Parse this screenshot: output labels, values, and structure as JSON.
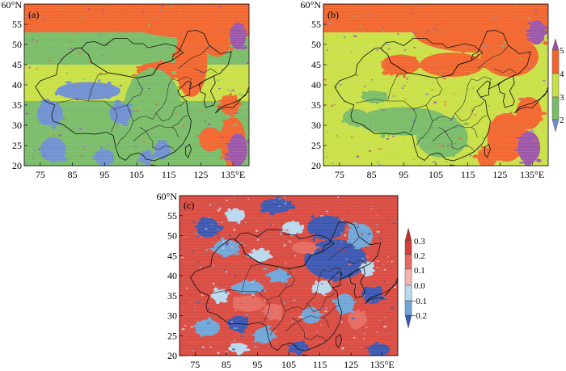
{
  "panels": [
    {
      "label": "(a)",
      "y_top_label": "60°N",
      "y_ticks": [
        "55",
        "50",
        "45",
        "40",
        "35",
        "30",
        "25",
        "20"
      ],
      "x_ticks": [
        "75",
        "85",
        "95",
        "105",
        "115",
        "125",
        "135°E"
      ],
      "palette": "classes",
      "blobs": [
        {
          "lon": 127,
          "lat": 55,
          "rx": 24,
          "ry": 3.6,
          "c": "c4"
        },
        {
          "lon": 116,
          "lat": 57.5,
          "rx": 16,
          "ry": 2.3,
          "c": "c4"
        },
        {
          "lon": 93,
          "lat": 57,
          "rx": 6,
          "ry": 2,
          "c": "c4"
        },
        {
          "lon": 122,
          "lat": 46,
          "rx": 5,
          "ry": 9,
          "c": "c4"
        },
        {
          "lon": 113,
          "lat": 43.5,
          "rx": 8,
          "ry": 2.2,
          "c": "c4"
        },
        {
          "lon": 130,
          "lat": 50,
          "rx": 4,
          "ry": 3,
          "c": "c4"
        },
        {
          "lon": 134,
          "lat": 35,
          "rx": 3,
          "ry": 2.5,
          "c": "c4"
        },
        {
          "lon": 128,
          "lat": 26.5,
          "rx": 3.5,
          "ry": 3,
          "c": "c4"
        },
        {
          "lon": 135,
          "lat": 26,
          "rx": 4,
          "ry": 6,
          "c": "c4"
        },
        {
          "lon": 136.5,
          "lat": 52,
          "rx": 2.5,
          "ry": 3.2,
          "c": "c5"
        },
        {
          "lon": 136.5,
          "lat": 24,
          "rx": 3,
          "ry": 4,
          "c": "c5"
        },
        {
          "lon": 94,
          "lat": 28.5,
          "rx": 15,
          "ry": 4.5,
          "c": "c3"
        },
        {
          "lon": 110,
          "lat": 34,
          "rx": 9,
          "ry": 10,
          "c": "c3"
        },
        {
          "lon": 90,
          "lat": 38.5,
          "rx": 10,
          "ry": 2.2,
          "c": "c2"
        },
        {
          "lon": 78,
          "lat": 33,
          "rx": 4,
          "ry": 3,
          "c": "c2"
        },
        {
          "lon": 100,
          "lat": 33,
          "rx": 3.5,
          "ry": 2.5,
          "c": "c2"
        },
        {
          "lon": 79,
          "lat": 24,
          "rx": 4,
          "ry": 3,
          "c": "c2"
        },
        {
          "lon": 95,
          "lat": 22,
          "rx": 3,
          "ry": 2,
          "c": "c2"
        },
        {
          "lon": 113,
          "lat": 24,
          "rx": 2.5,
          "ry": 2,
          "c": "c2"
        },
        {
          "lon": 108,
          "lat": 22,
          "rx": 2,
          "ry": 1.5,
          "c": "c2"
        }
      ]
    },
    {
      "label": "(b)",
      "y_top_label": "60°N",
      "y_ticks": [
        "55",
        "50",
        "45",
        "40",
        "35",
        "30",
        "25",
        "20"
      ],
      "x_ticks": [
        "75",
        "85",
        "95",
        "105",
        "115",
        "125",
        "135°E"
      ],
      "palette": "classes",
      "blobs": [
        {
          "lon": 118,
          "lat": 53,
          "rx": 20,
          "ry": 5,
          "c": "c4"
        },
        {
          "lon": 128,
          "lat": 47,
          "rx": 9,
          "ry": 5,
          "c": "c4"
        },
        {
          "lon": 110,
          "lat": 45,
          "rx": 10,
          "ry": 3,
          "c": "c4"
        },
        {
          "lon": 94,
          "lat": 45,
          "rx": 6,
          "ry": 2.5,
          "c": "c4"
        },
        {
          "lon": 104,
          "lat": 57,
          "rx": 7,
          "ry": 1.8,
          "c": "c4"
        },
        {
          "lon": 127,
          "lat": 27,
          "rx": 6,
          "ry": 6,
          "c": "c4"
        },
        {
          "lon": 134,
          "lat": 33,
          "rx": 4,
          "ry": 4,
          "c": "c4"
        },
        {
          "lon": 121,
          "lat": 22,
          "rx": 3,
          "ry": 2.5,
          "c": "c4"
        },
        {
          "lon": 136.5,
          "lat": 53,
          "rx": 2.5,
          "ry": 3,
          "c": "c5"
        },
        {
          "lon": 134,
          "lat": 24.5,
          "rx": 3.5,
          "ry": 4,
          "c": "c5"
        },
        {
          "lon": 95,
          "lat": 31,
          "rx": 14,
          "ry": 3.5,
          "c": "c3"
        },
        {
          "lon": 107,
          "lat": 27,
          "rx": 8,
          "ry": 5,
          "c": "c3"
        },
        {
          "lon": 80,
          "lat": 32,
          "rx": 4,
          "ry": 2,
          "c": "c3"
        },
        {
          "lon": 86,
          "lat": 37,
          "rx": 4,
          "ry": 1.5,
          "c": "c3"
        }
      ]
    },
    {
      "label": "(c)",
      "y_top_label": "60°N",
      "y_ticks": [
        "55",
        "50",
        "45",
        "40",
        "35",
        "30",
        "25",
        "20"
      ],
      "x_ticks": [
        "75",
        "85",
        "95",
        "105",
        "115",
        "125",
        "135°E"
      ],
      "palette": "diff",
      "blobs": [
        {
          "lon": 120,
          "lat": 44,
          "rx": 10,
          "ry": 5,
          "c": "m2"
        },
        {
          "lon": 117,
          "lat": 52,
          "rx": 6,
          "ry": 3,
          "c": "m2"
        },
        {
          "lon": 101,
          "lat": 57.5,
          "rx": 5,
          "ry": 1.8,
          "c": "m2"
        },
        {
          "lon": 79,
          "lat": 52,
          "rx": 3.5,
          "ry": 2.5,
          "c": "m2"
        },
        {
          "lon": 89,
          "lat": 28,
          "rx": 3,
          "ry": 2,
          "c": "m2"
        },
        {
          "lon": 132,
          "lat": 35,
          "rx": 3,
          "ry": 2,
          "c": "m2"
        },
        {
          "lon": 134,
          "lat": 21.5,
          "rx": 3.5,
          "ry": 1.5,
          "c": "m2"
        },
        {
          "lon": 108,
          "lat": 22,
          "rx": 2.5,
          "ry": 1.5,
          "c": "m2"
        },
        {
          "lon": 92,
          "lat": 37,
          "rx": 5,
          "ry": 1.5,
          "c": "m1"
        },
        {
          "lon": 85,
          "lat": 47,
          "rx": 4,
          "ry": 2,
          "c": "m1"
        },
        {
          "lon": 128,
          "lat": 50,
          "rx": 4,
          "ry": 3,
          "c": "m1"
        },
        {
          "lon": 79,
          "lat": 27,
          "rx": 4,
          "ry": 2,
          "c": "m1"
        },
        {
          "lon": 112,
          "lat": 30,
          "rx": 3,
          "ry": 2,
          "c": "m1"
        },
        {
          "lon": 123,
          "lat": 33,
          "rx": 3,
          "ry": 2.5,
          "c": "m1"
        },
        {
          "lon": 102,
          "lat": 40,
          "rx": 3,
          "ry": 1.5,
          "c": "m1"
        },
        {
          "lon": 97,
          "lat": 25,
          "rx": 3,
          "ry": 2,
          "c": "m1"
        },
        {
          "lon": 96,
          "lat": 45,
          "rx": 3,
          "ry": 1.5,
          "c": "z0"
        },
        {
          "lon": 83,
          "lat": 35,
          "rx": 2.5,
          "ry": 1.5,
          "c": "z0"
        },
        {
          "lon": 116,
          "lat": 37,
          "rx": 3,
          "ry": 1.5,
          "c": "z0"
        },
        {
          "lon": 106,
          "lat": 52,
          "rx": 3,
          "ry": 1.5,
          "c": "z0"
        },
        {
          "lon": 89,
          "lat": 22,
          "rx": 2.5,
          "ry": 1.2,
          "c": "z0"
        },
        {
          "lon": 130,
          "lat": 42,
          "rx": 2,
          "ry": 1.5,
          "c": "z0"
        },
        {
          "lon": 88,
          "lat": 55,
          "rx": 3,
          "ry": 1.5,
          "c": "z0"
        },
        {
          "lon": 110,
          "lat": 47,
          "rx": 4,
          "ry": 1.5,
          "c": "p2"
        },
        {
          "lon": 92,
          "lat": 33,
          "rx": 5,
          "ry": 2,
          "c": "p2"
        },
        {
          "lon": 127,
          "lat": 29,
          "rx": 3,
          "ry": 2,
          "c": "p2"
        },
        {
          "lon": 100,
          "lat": 31,
          "rx": 3,
          "ry": 2,
          "c": "p2"
        }
      ]
    }
  ],
  "colorbars": [
    {
      "labels": [
        "5",
        "4",
        "3",
        "2"
      ]
    },
    {
      "labels": [
        "0.3",
        "0.2",
        "0.1",
        "0.0",
        "−0.1",
        "−0.2"
      ]
    }
  ],
  "colors": {
    "classes": {
      "c2": "#6f8fd0",
      "c3": "#79bc67",
      "c4": "#f2652d",
      "c5": "#9b55a8",
      "base": "#c9e045"
    },
    "diff": {
      "m2": "#3b56b0",
      "m1": "#6ea6d8",
      "z0": "#b9d9ee",
      "p1": "#f4b5b1",
      "p2": "#e56a60",
      "p3": "#d63d36",
      "base": "#d94a40"
    }
  }
}
